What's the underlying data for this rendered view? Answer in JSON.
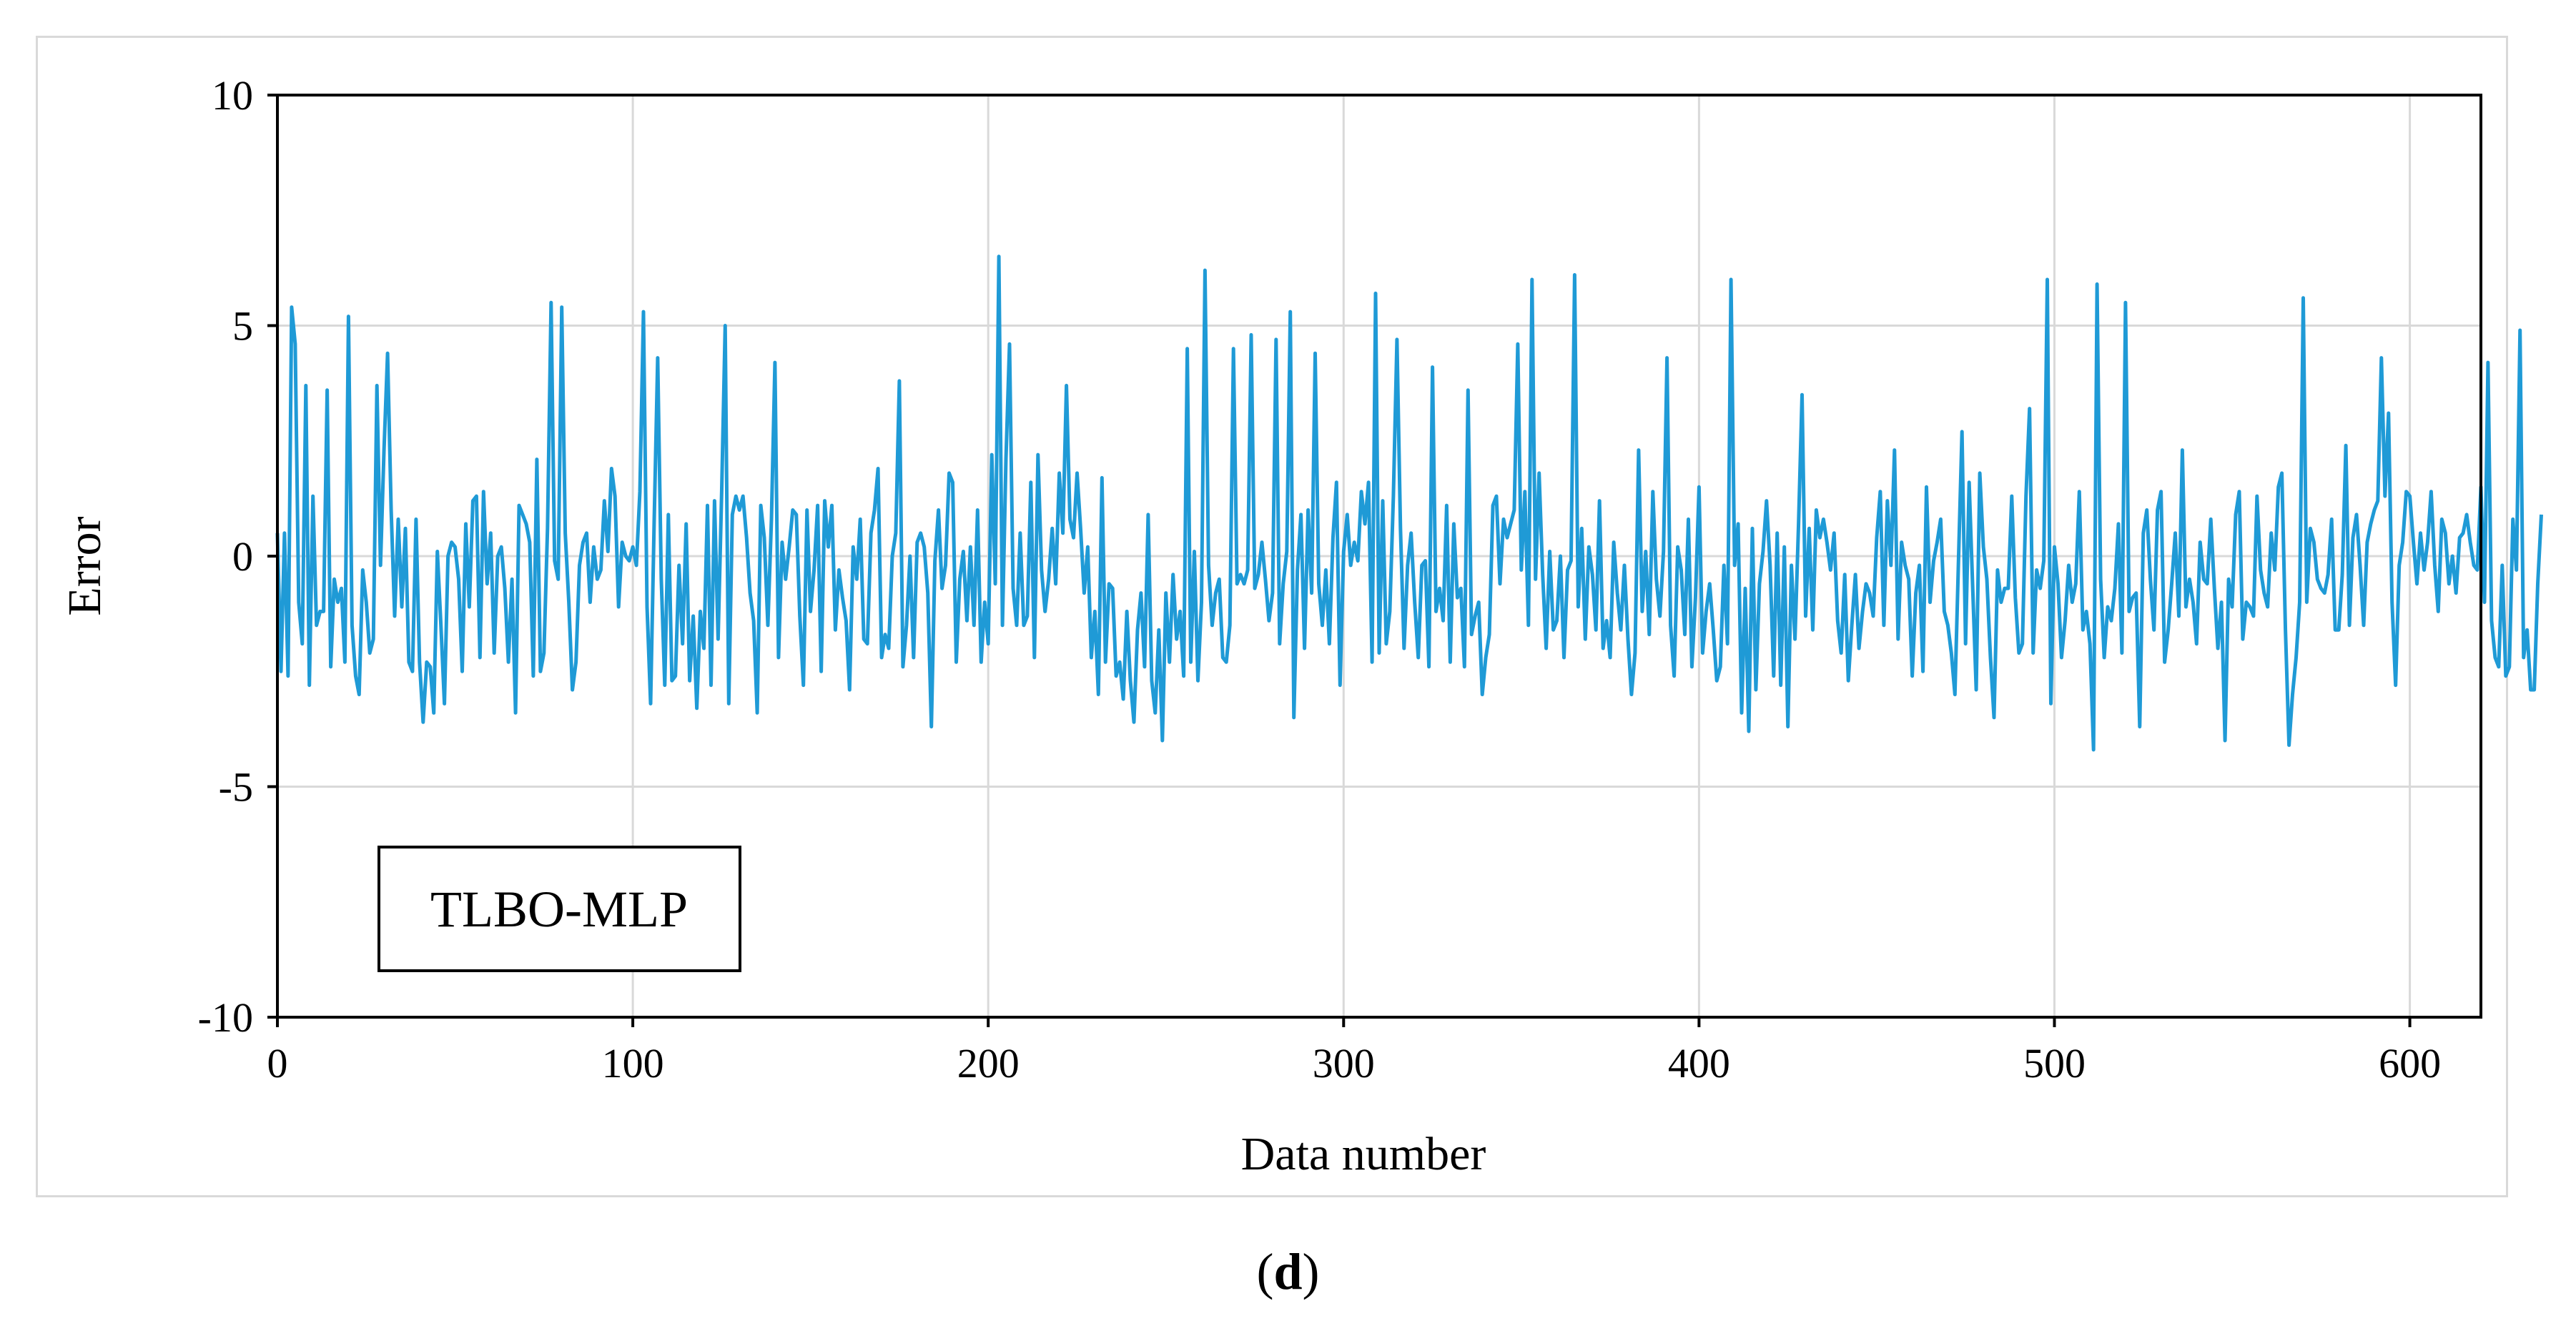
{
  "caption": {
    "open": "(",
    "letter": "d",
    "close": ")"
  },
  "chart_data": {
    "type": "line",
    "title": "",
    "xlabel": "Data number",
    "ylabel": "Error",
    "xlim": [
      0,
      620
    ],
    "ylim": [
      -10,
      10
    ],
    "xticks": [
      0,
      100,
      200,
      300,
      400,
      500,
      600
    ],
    "yticks": [
      -10,
      -5,
      0,
      5,
      10
    ],
    "grid": true,
    "legend_box": "TLBO-MLP",
    "legend_position": "bottom-left",
    "colors": {
      "line": "#1f9ad6",
      "grid": "#d9d9d9",
      "axis": "#000000"
    },
    "series": [
      {
        "name": "TLBO-MLP",
        "y": [
          0.5,
          -2.5,
          0.5,
          -2.6,
          5.4,
          4.6,
          -1.0,
          -1.9,
          3.7,
          -2.8,
          1.3,
          -1.5,
          -1.2,
          -1.2,
          3.6,
          -2.4,
          -0.5,
          -1.0,
          -0.7,
          -2.3,
          5.2,
          -1.5,
          -2.6,
          -3.0,
          -0.3,
          -1.0,
          -2.1,
          -1.8,
          3.7,
          -0.2,
          2.3,
          4.4,
          1.0,
          -1.3,
          0.8,
          -1.1,
          0.6,
          -2.3,
          -2.5,
          0.8,
          -2.3,
          -3.6,
          -2.3,
          -2.4,
          -3.4,
          0.1,
          -1.5,
          -3.2,
          0.0,
          0.3,
          0.2,
          -0.5,
          -2.5,
          0.7,
          -1.1,
          1.2,
          1.3,
          -2.2,
          1.4,
          -0.6,
          0.5,
          -2.1,
          0.0,
          0.2,
          -0.7,
          -2.3,
          -0.5,
          -3.4,
          1.1,
          0.9,
          0.7,
          0.3,
          -2.6,
          2.1,
          -2.5,
          -2.1,
          0.6,
          5.5,
          -0.1,
          -0.5,
          5.4,
          0.5,
          -1.0,
          -2.9,
          -2.3,
          -0.2,
          0.3,
          0.5,
          -1.0,
          0.2,
          -0.5,
          -0.3,
          1.2,
          0.1,
          1.9,
          1.3,
          -1.1,
          0.3,
          0.0,
          -0.1,
          0.2,
          -0.2,
          1.4,
          5.3,
          -1.1,
          -3.2,
          0.7,
          4.3,
          -0.5,
          -2.8,
          0.9,
          -2.7,
          -2.6,
          -0.2,
          -1.9,
          0.7,
          -2.7,
          -1.3,
          -3.3,
          -1.2,
          -2.0,
          1.1,
          -2.8,
          1.2,
          -1.8,
          1.4,
          5.0,
          -3.2,
          0.9,
          1.3,
          1.0,
          1.3,
          0.4,
          -0.8,
          -1.4,
          -3.4,
          1.1,
          0.4,
          -1.5,
          0.8,
          4.2,
          -2.2,
          0.3,
          -0.5,
          0.2,
          1.0,
          0.9,
          -1.3,
          -2.8,
          1.0,
          -1.2,
          -0.3,
          1.1,
          -2.5,
          1.2,
          0.2,
          1.1,
          -1.6,
          -0.3,
          -0.9,
          -1.4,
          -2.9,
          0.2,
          -0.5,
          0.8,
          -1.8,
          -1.9,
          0.5,
          1.0,
          1.9,
          -2.2,
          -1.7,
          -2.0,
          0.0,
          0.5,
          3.8,
          -2.4,
          -1.5,
          0.0,
          -2.2,
          0.3,
          0.5,
          0.2,
          -0.8,
          -3.7,
          -0.1,
          1.0,
          -0.7,
          -0.2,
          1.8,
          1.6,
          -2.3,
          -0.5,
          0.1,
          -1.4,
          0.2,
          -1.5,
          1.0,
          -2.3,
          -1.0,
          -1.9,
          2.2,
          -0.6,
          6.5,
          -1.5,
          2.1,
          4.6,
          -0.7,
          -1.5,
          0.5,
          -1.5,
          -1.3,
          1.6,
          -2.2,
          2.2,
          -0.3,
          -1.2,
          -0.5,
          0.6,
          -0.6,
          1.8,
          0.5,
          3.7,
          0.8,
          0.4,
          1.8,
          0.6,
          -0.8,
          0.2,
          -2.2,
          -1.2,
          -3.0,
          1.7,
          -2.3,
          -0.6,
          -0.7,
          -2.6,
          -2.3,
          -3.1,
          -1.2,
          -2.7,
          -3.6,
          -1.6,
          -0.8,
          -2.4,
          0.9,
          -2.7,
          -3.4,
          -1.6,
          -4.0,
          -0.8,
          -2.3,
          -0.4,
          -1.8,
          -1.2,
          -2.6,
          4.5,
          -2.3,
          0.1,
          -2.7,
          -1.0,
          6.2,
          -0.2,
          -1.5,
          -0.8,
          -0.5,
          -2.2,
          -2.3,
          -1.5,
          4.5,
          -0.6,
          -0.4,
          -0.6,
          -0.3,
          4.8,
          -0.7,
          -0.4,
          0.3,
          -0.5,
          -1.4,
          -0.8,
          4.7,
          -1.9,
          -0.6,
          0.1,
          5.3,
          -3.5,
          -0.3,
          0.9,
          -2.0,
          1.0,
          -0.8,
          4.4,
          -0.6,
          -1.5,
          -0.3,
          -1.9,
          0.4,
          1.6,
          -2.8,
          0.1,
          0.9,
          -0.2,
          0.3,
          -0.1,
          1.4,
          0.7,
          1.6,
          -2.3,
          5.7,
          -2.1,
          1.2,
          -1.9,
          -1.2,
          1.3,
          4.7,
          0.6,
          -2.0,
          -0.2,
          0.5,
          -1.0,
          -2.2,
          -0.2,
          -0.1,
          -2.4,
          4.1,
          -1.2,
          -0.7,
          -1.4,
          1.1,
          -2.3,
          0.7,
          -0.9,
          -0.7,
          -2.4,
          3.6,
          -1.7,
          -1.3,
          -1.0,
          -3.0,
          -2.2,
          -1.7,
          1.1,
          1.3,
          -0.6,
          0.8,
          0.4,
          0.7,
          1.0,
          4.6,
          -0.3,
          1.4,
          -1.5,
          6.0,
          -0.5,
          1.8,
          -0.4,
          -2.0,
          0.1,
          -1.6,
          -1.4,
          0.0,
          -2.2,
          -0.3,
          -0.1,
          6.1,
          -1.1,
          0.6,
          -1.8,
          0.2,
          -0.4,
          -1.6,
          1.2,
          -2.0,
          -1.4,
          -2.2,
          0.3,
          -0.8,
          -1.6,
          -0.2,
          -1.8,
          -3.0,
          -2.1,
          2.3,
          -1.2,
          0.1,
          -1.7,
          1.4,
          -0.5,
          -1.3,
          0.1,
          4.3,
          -1.5,
          -2.6,
          0.2,
          -0.3,
          -1.7,
          0.8,
          -2.4,
          -0.9,
          1.5,
          -2.1,
          -1.2,
          -0.6,
          -1.6,
          -2.7,
          -2.4,
          -0.2,
          -1.9,
          6.0,
          -0.2,
          0.7,
          -3.4,
          -0.7,
          -3.8,
          0.6,
          -2.9,
          -0.6,
          0.1,
          1.2,
          -0.2,
          -2.6,
          0.5,
          -2.8,
          0.2,
          -3.7,
          -0.2,
          -1.8,
          0.7,
          3.5,
          -1.3,
          0.6,
          -1.6,
          1.0,
          0.4,
          0.8,
          0.3,
          -0.3,
          0.5,
          -1.4,
          -2.1,
          -0.4,
          -2.7,
          -1.5,
          -0.4,
          -2.0,
          -1.2,
          -0.6,
          -0.8,
          -1.3,
          0.4,
          1.4,
          -1.5,
          1.2,
          -0.2,
          2.3,
          -1.8,
          0.3,
          -0.2,
          -0.5,
          -2.6,
          -0.8,
          -0.2,
          -2.5,
          1.5,
          -1.0,
          -0.1,
          0.3,
          0.8,
          -1.2,
          -1.5,
          -2.1,
          -3.0,
          -0.1,
          2.7,
          -1.9,
          1.6,
          -0.7,
          -2.9,
          1.8,
          0.2,
          -0.5,
          -2.2,
          -3.5,
          -0.3,
          -1.0,
          -0.7,
          -0.7,
          1.3,
          -0.9,
          -2.1,
          -1.9,
          1.3,
          3.2,
          -2.1,
          -0.3,
          -0.7,
          -0.1,
          6.0,
          -3.2,
          0.2,
          -0.6,
          -2.2,
          -1.4,
          -0.2,
          -1.0,
          -0.6,
          1.4,
          -1.6,
          -1.2,
          -1.9,
          -4.2,
          5.9,
          -0.5,
          -2.2,
          -1.1,
          -1.4,
          -0.7,
          0.7,
          -2.1,
          5.5,
          -1.2,
          -0.9,
          -0.8,
          -3.7,
          0.5,
          1.0,
          -0.5,
          -1.6,
          1.0,
          1.4,
          -2.3,
          -1.6,
          -0.6,
          0.5,
          -1.3,
          2.3,
          -1.1,
          -0.5,
          -1.0,
          -1.9,
          0.3,
          -0.5,
          -0.6,
          0.8,
          -0.7,
          -2.0,
          -1.0,
          -4.0,
          -0.5,
          -1.1,
          0.9,
          1.4,
          -1.8,
          -1.0,
          -1.1,
          -1.3,
          1.3,
          -0.3,
          -0.8,
          -1.1,
          0.5,
          -0.3,
          1.5,
          1.8,
          -1.6,
          -4.1,
          -3.0,
          -2.2,
          -1.0,
          5.6,
          -1.0,
          0.6,
          0.3,
          -0.5,
          -0.7,
          -0.8,
          -0.4,
          0.8,
          -1.6,
          -1.6,
          -0.4,
          2.4,
          -1.5,
          0.4,
          0.9,
          -0.2,
          -1.5,
          0.3,
          0.7,
          1.0,
          1.2,
          4.3,
          1.3,
          3.1,
          -1.0,
          -2.8,
          -0.2,
          0.3,
          1.4,
          1.3,
          0.3,
          -0.6,
          0.5,
          -0.3,
          0.3,
          1.4,
          -0.2,
          -1.2,
          0.8,
          0.5,
          -0.6,
          0.0,
          -0.8,
          0.4,
          0.5,
          0.9,
          0.3,
          -0.2,
          -0.3,
          1.5,
          -1.0,
          4.2,
          -1.4,
          -2.2,
          -2.4,
          -0.2,
          -2.6,
          -2.4,
          0.8,
          -0.3,
          4.9,
          -2.2,
          -1.6,
          -2.9,
          -2.9,
          -0.6,
          0.9
        ]
      }
    ]
  }
}
